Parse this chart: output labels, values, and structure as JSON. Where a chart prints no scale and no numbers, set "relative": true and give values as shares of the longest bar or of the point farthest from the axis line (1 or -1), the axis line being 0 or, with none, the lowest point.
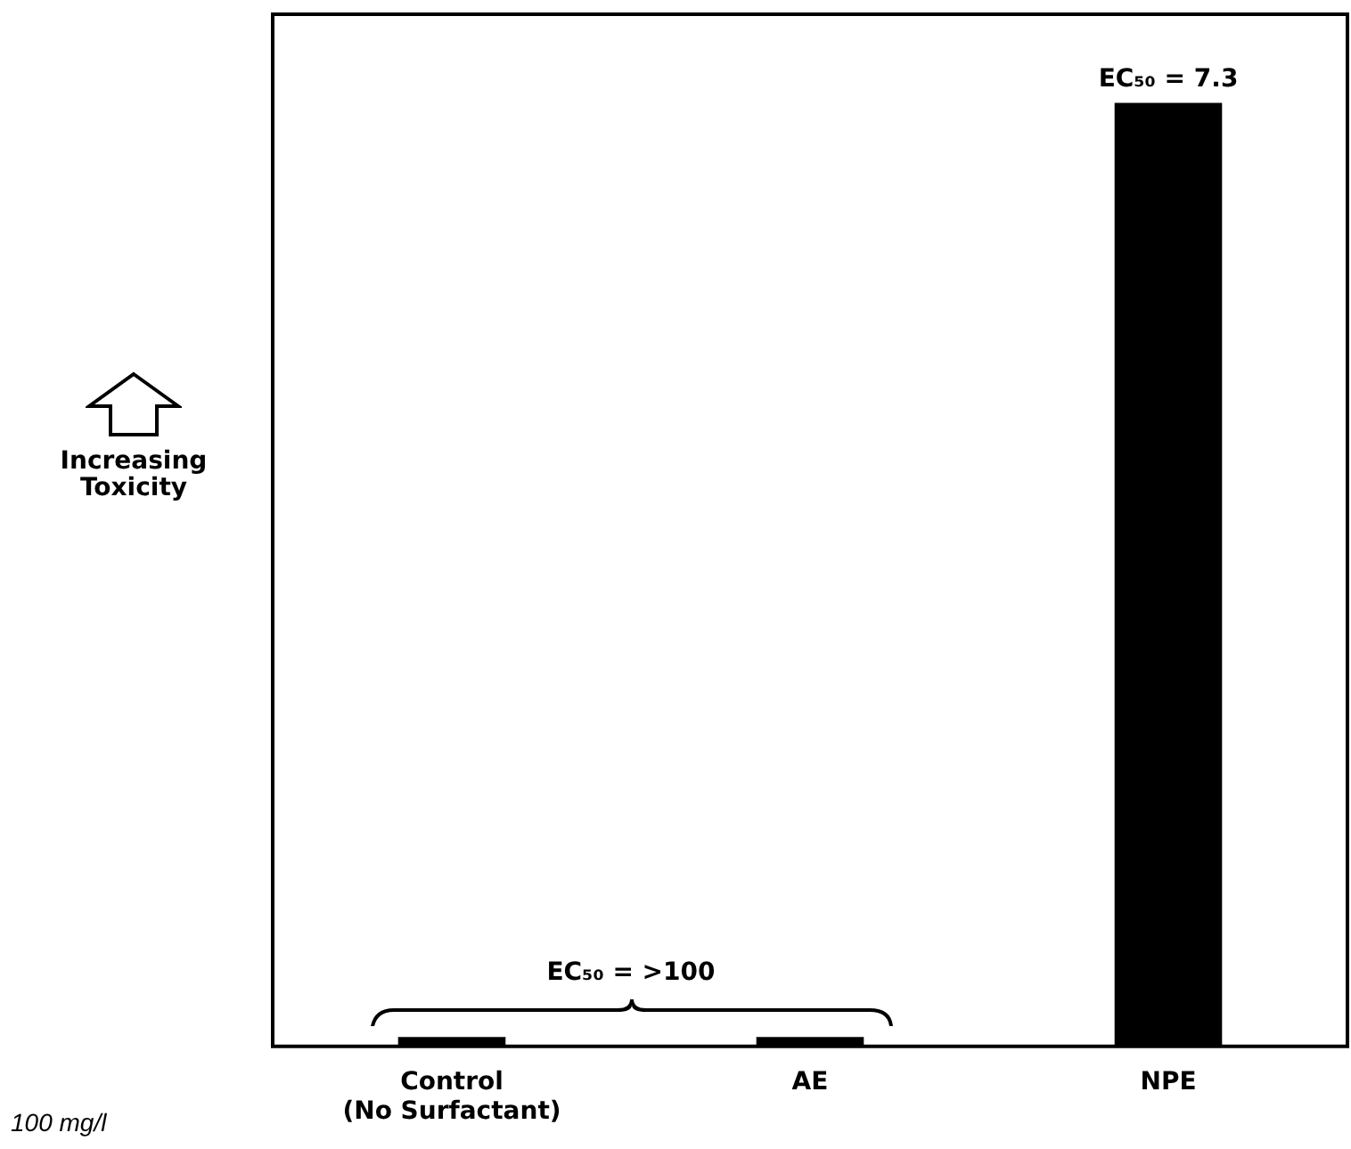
{
  "chart_data": {
    "type": "bar",
    "relative": true,
    "categories": [
      "Control\n(No Surfactant)",
      "AE",
      "NPE"
    ],
    "values": [
      0.01,
      0.01,
      1
    ],
    "color": "#000000",
    "ylabel": "Increasing Toxicity",
    "annotations": [
      {
        "text": "EC₅₀ = 7.3",
        "x": "NPE",
        "y": 1
      },
      "EC₅₀ = >100",
      "100 mg/l"
    ],
    "grid": false,
    "legend": false
  }
}
